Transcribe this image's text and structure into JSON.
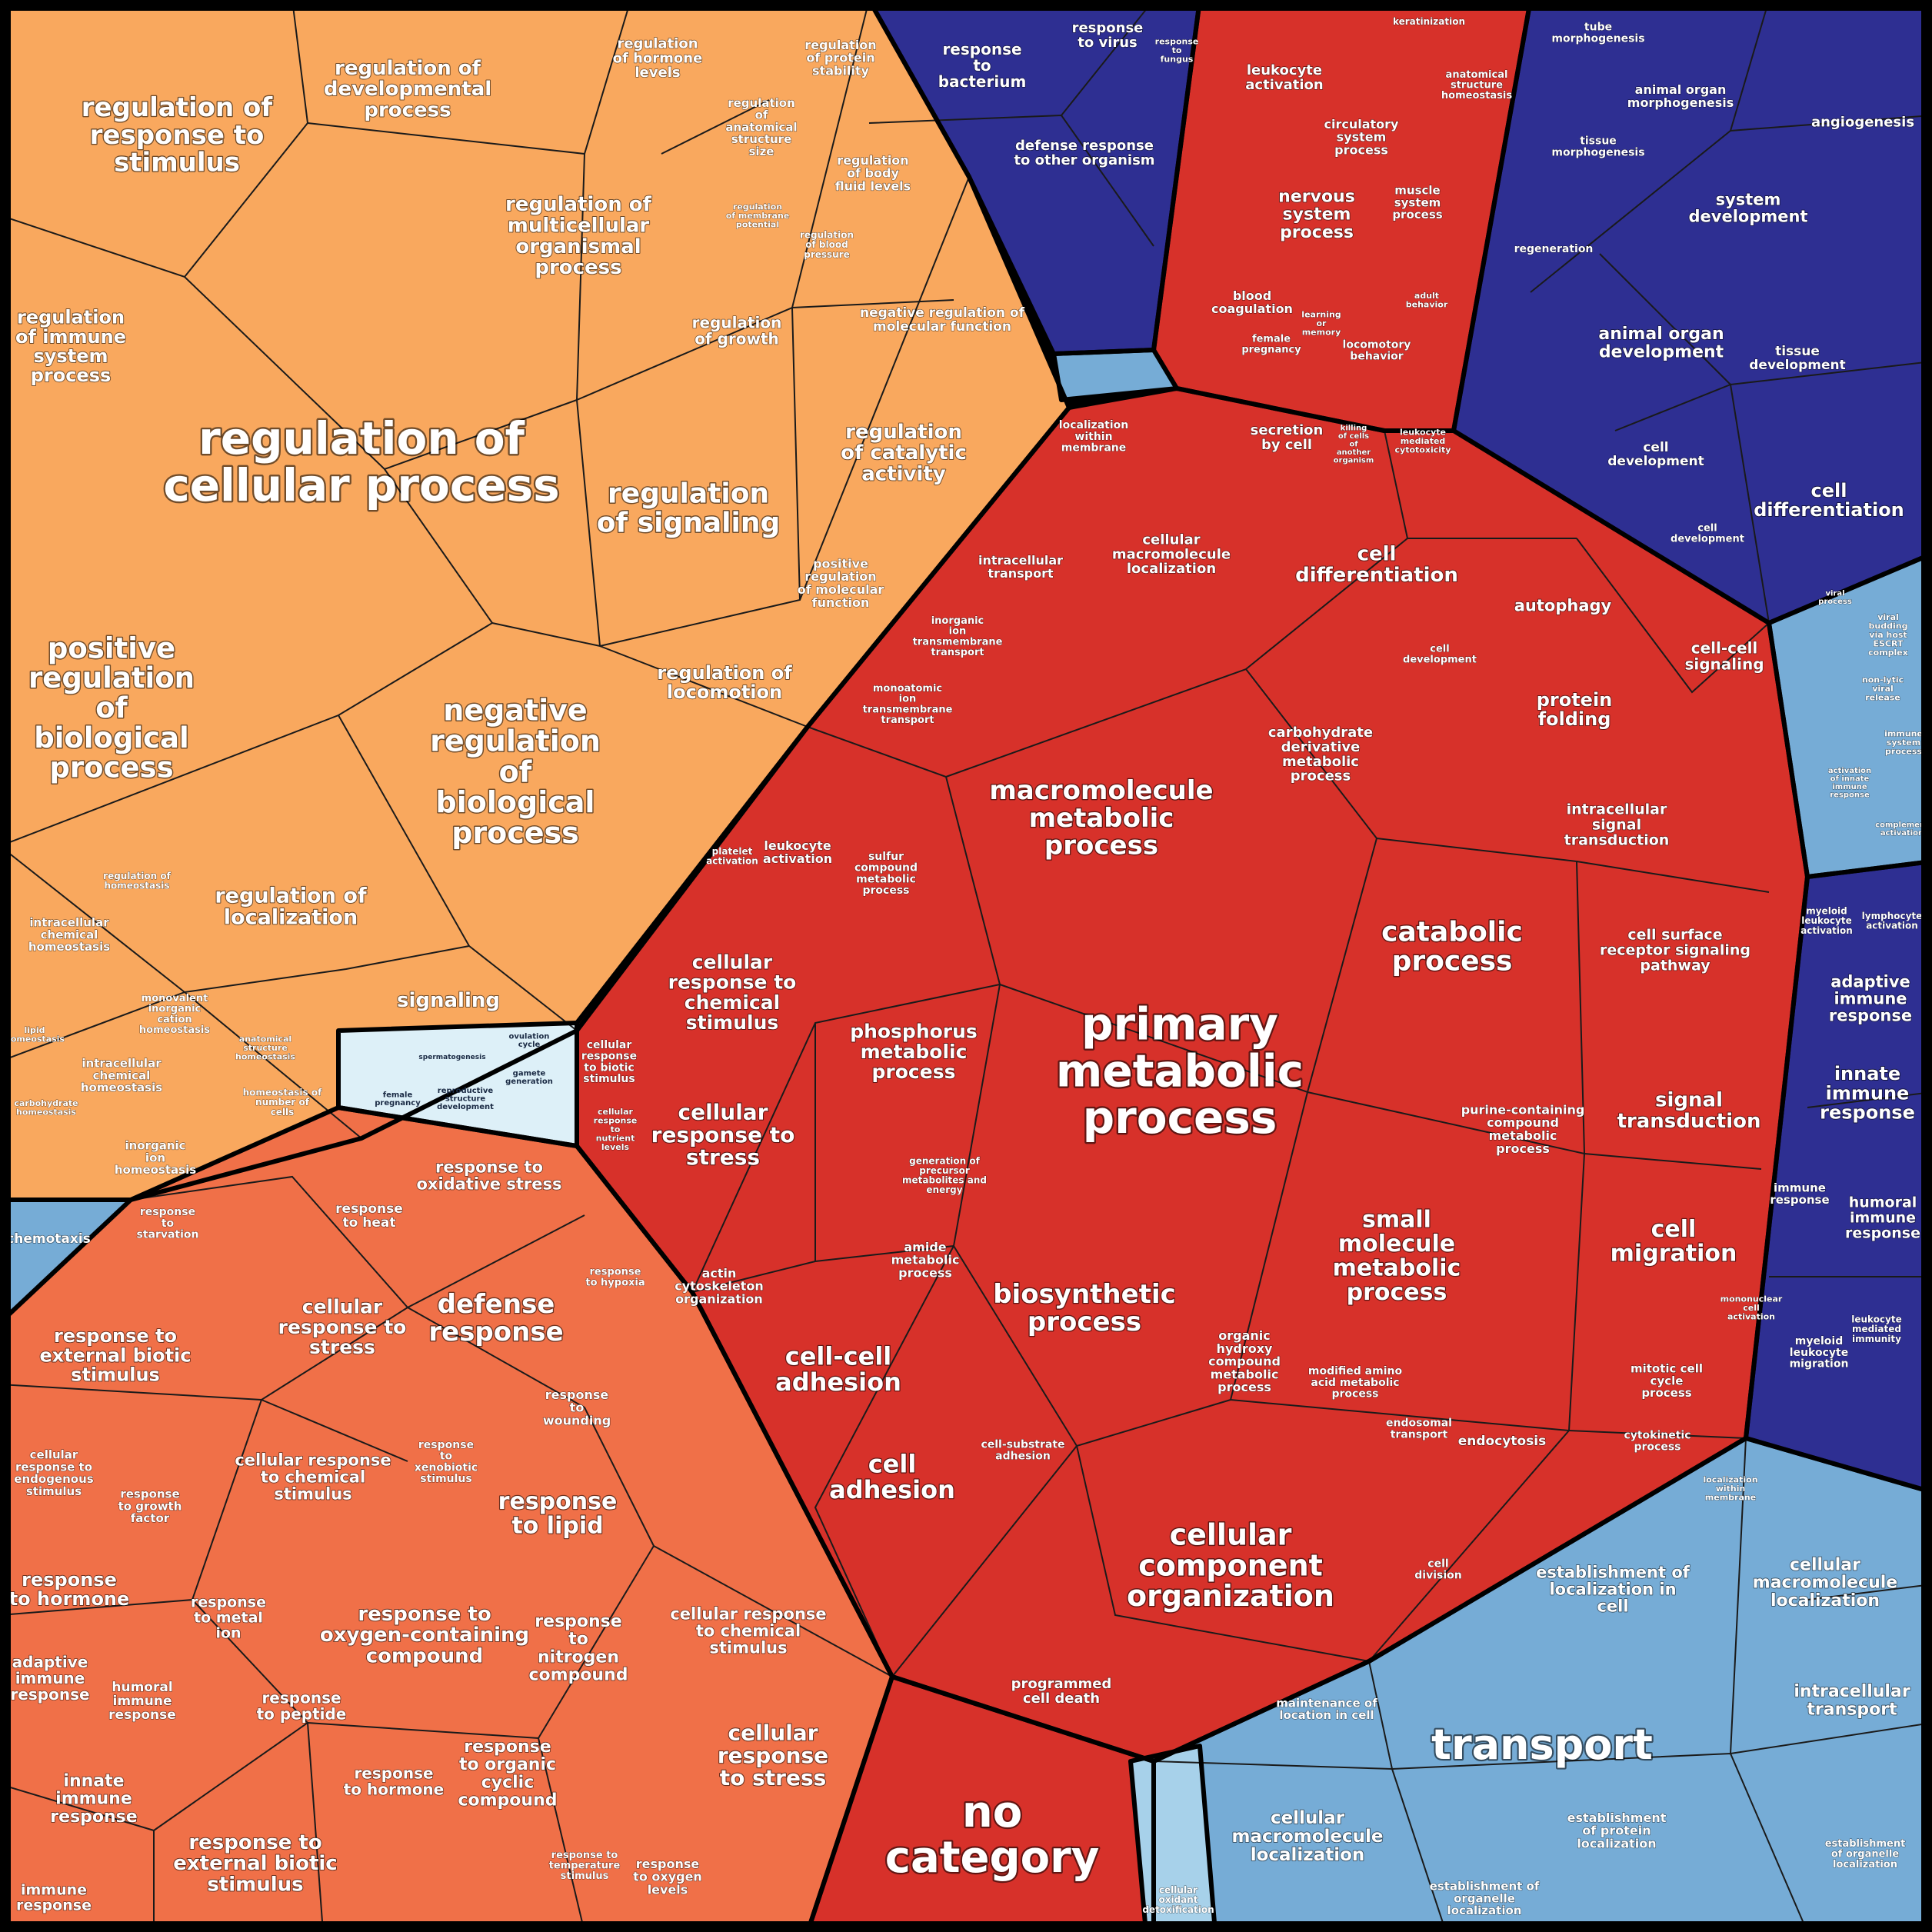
{
  "colors": {
    "biological_regulation": "#f9a85e",
    "response_to_stimulus": "#f07048",
    "metabolic_process": "#d7312a",
    "developmental_process": "#2e2f92",
    "localization": "#76acd6",
    "reproduction": "#ddf0f8",
    "no_category": "#d7312a"
  },
  "labels": {
    "reg_cellular": "regulation of cellular process",
    "reg_response_stimulus": "regulation of response to stimulus",
    "reg_dev_process": "regulation of developmental process",
    "reg_hormone": "regulation of hormone levels",
    "reg_protein_stability": "regulation of protein stability",
    "reg_anat_size": "regulation of anatomical structure size",
    "reg_body_fluid": "regulation of body fluid levels",
    "reg_membrane_potential": "regulation of membrane potential",
    "reg_blood_pressure": "regulation of blood pressure",
    "reg_multicellular": "regulation of multicellular organismal process",
    "reg_immune": "regulation of immune system process",
    "reg_growth": "regulation of growth",
    "neg_reg_molecular": "negative regulation of molecular function",
    "reg_signaling": "regulation of signaling",
    "reg_catalytic": "regulation of catalytic activity",
    "pos_reg_molecular": "positive regulation of molecular function",
    "reg_locomotion": "regulation of locomotion",
    "pos_reg_bio": "positive regulation of biological process",
    "neg_reg_bio": "negative regulation of biological process",
    "reg_localization": "regulation of localization",
    "signaling": "signaling",
    "reg_homeostasis": "regulation of homeostasis",
    "intracellular_chem_homeo": "intracellular chemical homeostasis",
    "monovalent_homeo": "monovalent inorganic cation homeostasis",
    "intracellular_chem_homeo2": "intracellular chemical homeostasis",
    "inorganic_ion_homeo": "inorganic ion homeostasis",
    "homeostasis_number": "homeostasis of number of cells",
    "anatomical_homeo": "anatomical structure homeostasis",
    "lipid_homeo": "lipid homeostasis",
    "carbohydrate_homeo": "carbohydrate homeostasis",
    "chemotaxis": "chemotaxis",
    "response_to_bacterium": "response to bacterium",
    "response_to_virus": "response to virus",
    "response_to_fungus": "response to fungus",
    "defense_other_org": "defense response to other organism",
    "leukocyte_activation_top": "leukocyte activation",
    "keratinization": "keratinization",
    "anatomical_struct_homeo": "anatomical structure homeostasis",
    "circulatory": "circulatory system process",
    "nervous_system": "nervous system process",
    "muscle_system": "muscle system process",
    "blood_coagulation": "blood coagulation",
    "female_pregnancy_top": "female pregnancy",
    "learning_memory": "learning or memory",
    "locomotory": "locomotory behavior",
    "adult_behavior": "adult behavior",
    "tube_morph": "tube morphogenesis",
    "animal_organ_morph": "animal organ morphogenesis",
    "tissue_morph": "tissue morphogenesis",
    "angiogenesis": "angiogenesis",
    "system_dev": "system development",
    "regeneration": "regeneration",
    "animal_organ_dev": "animal organ development",
    "tissue_dev": "tissue development",
    "cell_dev_blue": "cell development",
    "cell_diff_blue": "cell differentiation",
    "cell_dev_blue2": "cell development",
    "localization_within_membrane": "localization within membrane",
    "secretion_by_cell": "secretion by cell",
    "killing_cells": "killing of cells of another organism",
    "leukocyte_cytotoxicity": "leukocyte mediated cytotoxicity",
    "intracellular_transport_red": "intracellular transport",
    "cell_macromol_loc_red": "cellular macromolecule localization",
    "cell_diff_red": "cell differentiation",
    "autophagy": "autophagy",
    "cell_dev_red": "cell development",
    "cell_cell_signaling": "cell-cell signaling",
    "protein_folding": "protein folding",
    "inorganic_ion_transport": "inorganic ion transmembrane transport",
    "monoatomic_ion_transport": "monoatomic ion transmembrane transport",
    "carbohydrate_deriv": "carbohydrate derivative metabolic process",
    "macromolecule_metabolic": "macromolecule metabolic process",
    "intracellular_signal": "intracellular signal transduction",
    "leukocyte_activation_red": "leukocyte activation",
    "platelet_activation": "platelet activation",
    "sulfur_compound": "sulfur compound metabolic process",
    "catabolic": "catabolic process",
    "cell_surface_receptor": "cell surface receptor signaling pathway",
    "cellular_response_chem_red": "cellular response to chemical stimulus",
    "phosphorus_metabolic": "phosphorus metabolic process",
    "primary_metabolic": "primary metabolic process",
    "cellular_response_biotic": "cellular response to biotic stimulus",
    "signal_transduction": "signal transduction",
    "cellular_response_stress_red": "cellular response to stress",
    "cellular_response_nutrient": "cellular response to nutrient levels",
    "purine_compound": "purine-containing compound metabolic process",
    "generation_precursor": "generation of precursor metabolites and energy",
    "small_molecule": "small molecule metabolic process",
    "cell_migration": "cell migration",
    "actin_cytoskeleton": "actin cytoskeleton organization",
    "amide_metabolic": "amide metabolic process",
    "biosynthetic": "biosynthetic process",
    "organic_hydroxy": "organic hydroxy compound metabolic process",
    "modified_amino_acid": "modified amino acid metabolic process",
    "cell_cell_adhesion": "cell-cell adhesion",
    "endosomal_transport": "endosomal transport",
    "endocytosis": "endocytosis",
    "mitotic_cell_cycle": "mitotic cell cycle process",
    "cytokinetic": "cytokinetic process",
    "cell_adhesion": "cell adhesion",
    "cell_substrate_adhesion": "cell-substrate adhesion",
    "cellular_component_org": "cellular component organization",
    "cell_division": "cell division",
    "programmed_cell_death": "programmed cell death",
    "no_category": "no category",
    "response_oxidative": "response to oxidative stress",
    "response_heat": "response to heat",
    "response_starvation": "response to starvation",
    "defense_response": "defense response",
    "cellular_response_stress_o": "cellular response to stress",
    "response_hypoxia": "response to hypoxia",
    "response_external_biotic": "response to external biotic stimulus",
    "response_wounding": "response to wounding",
    "cellular_response_endogenous": "cellular response to endogenous stimulus",
    "cellular_response_chem_o": "cellular response to chemical stimulus",
    "response_xenobiotic": "response to xenobiotic stimulus",
    "response_lipid": "response to lipid",
    "response_growth_factor": "response to growth factor",
    "response_hormone": "response to hormone",
    "response_metal": "response to metal ion",
    "response_oxygen": "response to oxygen-containing compound",
    "response_nitrogen": "response to nitrogen compound",
    "cellular_response_chem_o2": "cellular response to chemical stimulus",
    "adaptive_immune": "adaptive immune response",
    "humoral_immune": "humoral immune response",
    "response_peptide": "response to peptide",
    "response_hormone2": "response to hormone",
    "response_organic_cyclic": "response to organic cyclic compound",
    "cellular_response_stress_o2": "cellular response to stress",
    "innate_immune": "innate immune response",
    "response_external_biotic2": "response to external biotic stimulus",
    "immune_response": "immune response",
    "response_temperature": "response to temperature stimulus",
    "response_oxygen_levels": "response to oxygen levels",
    "spermatogenesis": "spermatogenesis",
    "ovulation_cycle": "ovulation cycle",
    "gamete_generation": "gamete generation",
    "reproductive_struct": "reproductive structure development",
    "female_pregnancy_repro": "female pregnancy",
    "viral_process": "viral process",
    "viral_budding": "viral budding via host ESCRT complex",
    "non_lytic": "non-lytic viral release",
    "immune_system_process": "immune system process",
    "activation_innate": "activation of innate immune response",
    "complement_activation": "complement activation",
    "myeloid_leukocyte": "myeloid leukocyte activation",
    "lymphocyte_activation": "lymphocyte activation",
    "adaptive_immune_blue": "adaptive immune response",
    "innate_immune_blue": "innate immune response",
    "immune_response_blue": "immune response",
    "humoral_immune_blue": "humoral immune response",
    "leukocyte_mediated_immunity": "leukocyte mediated immunity",
    "myeloid_migration": "myeloid leukocyte migration",
    "mononuclear_activation": "mononuclear cell activation",
    "establishment_localization": "establishment of localization in cell",
    "cell_macromol_loc_blue": "cellular macromolecule localization",
    "intracellular_transport_blue": "intracellular transport",
    "transport": "transport",
    "maintenance_location": "maintenance of location in cell",
    "cell_macromol_loc_blue2": "cellular macromolecule localization",
    "establishment_protein": "establishment of protein localization",
    "establishment_organelle": "establishment of organelle localization",
    "establishment_organelle2": "establishment of organelle localization",
    "localization_within_membrane_blue": "localization within membrane",
    "cellular_oxidant": "cellular oxidant detoxification"
  }
}
